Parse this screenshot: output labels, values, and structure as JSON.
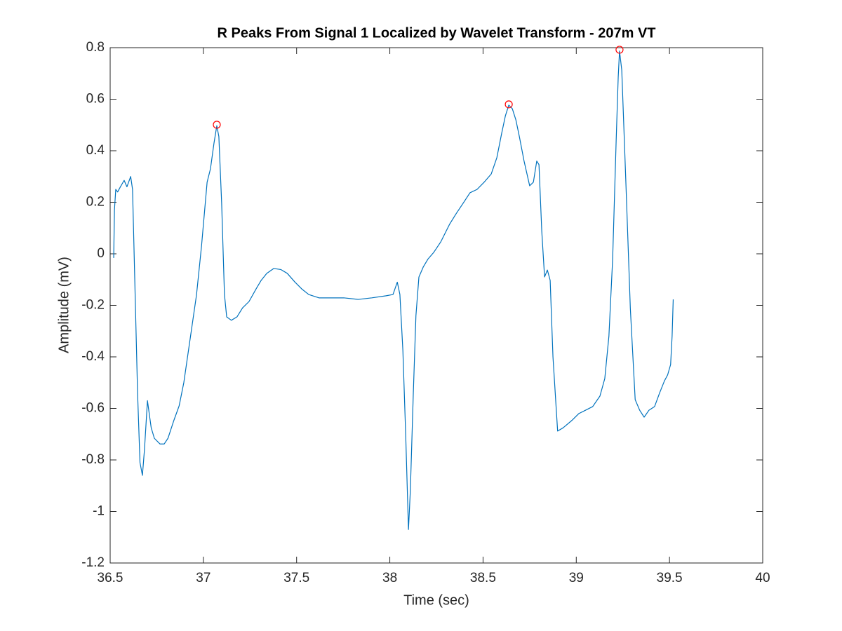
{
  "chart_data": {
    "type": "line",
    "title": "R Peaks From Signal 1 Localized by Wavelet Transform - 207m VT",
    "xlabel": "Time (sec)",
    "ylabel": "Amplitude (mV)",
    "color": "#0072bd",
    "x": [
      36.519,
      36.523,
      36.53,
      36.54,
      36.555,
      36.575,
      36.59,
      36.61,
      36.62,
      36.632,
      36.647,
      36.66,
      36.673,
      36.684,
      36.7,
      36.72,
      36.737,
      36.767,
      36.79,
      36.81,
      36.84,
      36.87,
      36.895,
      36.925,
      36.963,
      36.99,
      37.02,
      37.038,
      37.057,
      37.072,
      37.083,
      37.098,
      37.113,
      37.125,
      37.15,
      37.18,
      37.21,
      37.245,
      37.283,
      37.31,
      37.34,
      37.377,
      37.415,
      37.45,
      37.49,
      37.527,
      37.565,
      37.62,
      37.68,
      37.753,
      37.83,
      37.904,
      37.98,
      38.017,
      38.04,
      38.054,
      38.07,
      38.085,
      38.1,
      38.11,
      38.126,
      38.14,
      38.156,
      38.18,
      38.205,
      38.235,
      38.273,
      38.32,
      38.355,
      38.393,
      38.43,
      38.468,
      38.506,
      38.544,
      38.574,
      38.6,
      38.62,
      38.638,
      38.657,
      38.676,
      38.695,
      38.72,
      38.75,
      38.77,
      38.788,
      38.8,
      38.815,
      38.83,
      38.845,
      38.86,
      38.875,
      38.9,
      38.93,
      38.976,
      39.014,
      39.05,
      39.088,
      39.127,
      39.153,
      39.175,
      39.195,
      39.214,
      39.225,
      39.232,
      39.244,
      39.266,
      39.29,
      39.316,
      39.34,
      39.364,
      39.39,
      39.42,
      39.447,
      39.473,
      39.49,
      39.506,
      39.514,
      39.52
    ],
    "values": [
      -0.016,
      0.17,
      0.25,
      0.24,
      0.26,
      0.285,
      0.26,
      0.3,
      0.25,
      -0.1,
      -0.54,
      -0.81,
      -0.86,
      -0.76,
      -0.57,
      -0.675,
      -0.716,
      -0.738,
      -0.738,
      -0.716,
      -0.65,
      -0.59,
      -0.5,
      -0.35,
      -0.16,
      0.03,
      0.278,
      0.33,
      0.43,
      0.497,
      0.455,
      0.196,
      -0.158,
      -0.245,
      -0.258,
      -0.245,
      -0.21,
      -0.185,
      -0.136,
      -0.103,
      -0.076,
      -0.057,
      -0.061,
      -0.076,
      -0.109,
      -0.136,
      -0.158,
      -0.171,
      -0.171,
      -0.171,
      -0.177,
      -0.171,
      -0.163,
      -0.158,
      -0.11,
      -0.158,
      -0.375,
      -0.7,
      -1.07,
      -0.92,
      -0.54,
      -0.24,
      -0.09,
      -0.05,
      -0.02,
      0.005,
      0.046,
      0.114,
      0.155,
      0.196,
      0.237,
      0.25,
      0.278,
      0.31,
      0.373,
      0.468,
      0.536,
      0.577,
      0.563,
      0.52,
      0.454,
      0.36,
      0.264,
      0.278,
      0.36,
      0.346,
      0.087,
      -0.09,
      -0.063,
      -0.103,
      -0.4,
      -0.688,
      -0.675,
      -0.647,
      -0.62,
      -0.607,
      -0.593,
      -0.552,
      -0.484,
      -0.32,
      -0.022,
      0.44,
      0.686,
      0.787,
      0.713,
      0.278,
      -0.212,
      -0.566,
      -0.607,
      -0.634,
      -0.607,
      -0.593,
      -0.54,
      -0.493,
      -0.47,
      -0.43,
      -0.32,
      -0.177
    ],
    "markers": {
      "color": "#ff0000",
      "x": [
        37.072,
        38.638,
        39.232
      ],
      "values": [
        0.501,
        0.58,
        0.792
      ]
    },
    "xlim": [
      36.5,
      40
    ],
    "ylim": [
      -1.2,
      0.8
    ],
    "xticks": [
      36.5,
      37,
      37.5,
      38,
      38.5,
      39,
      39.5,
      40
    ],
    "yticks": [
      -1.2,
      -1,
      -0.8,
      -0.6,
      -0.4,
      -0.2,
      0,
      0.2,
      0.4,
      0.6,
      0.8
    ],
    "box": true
  }
}
